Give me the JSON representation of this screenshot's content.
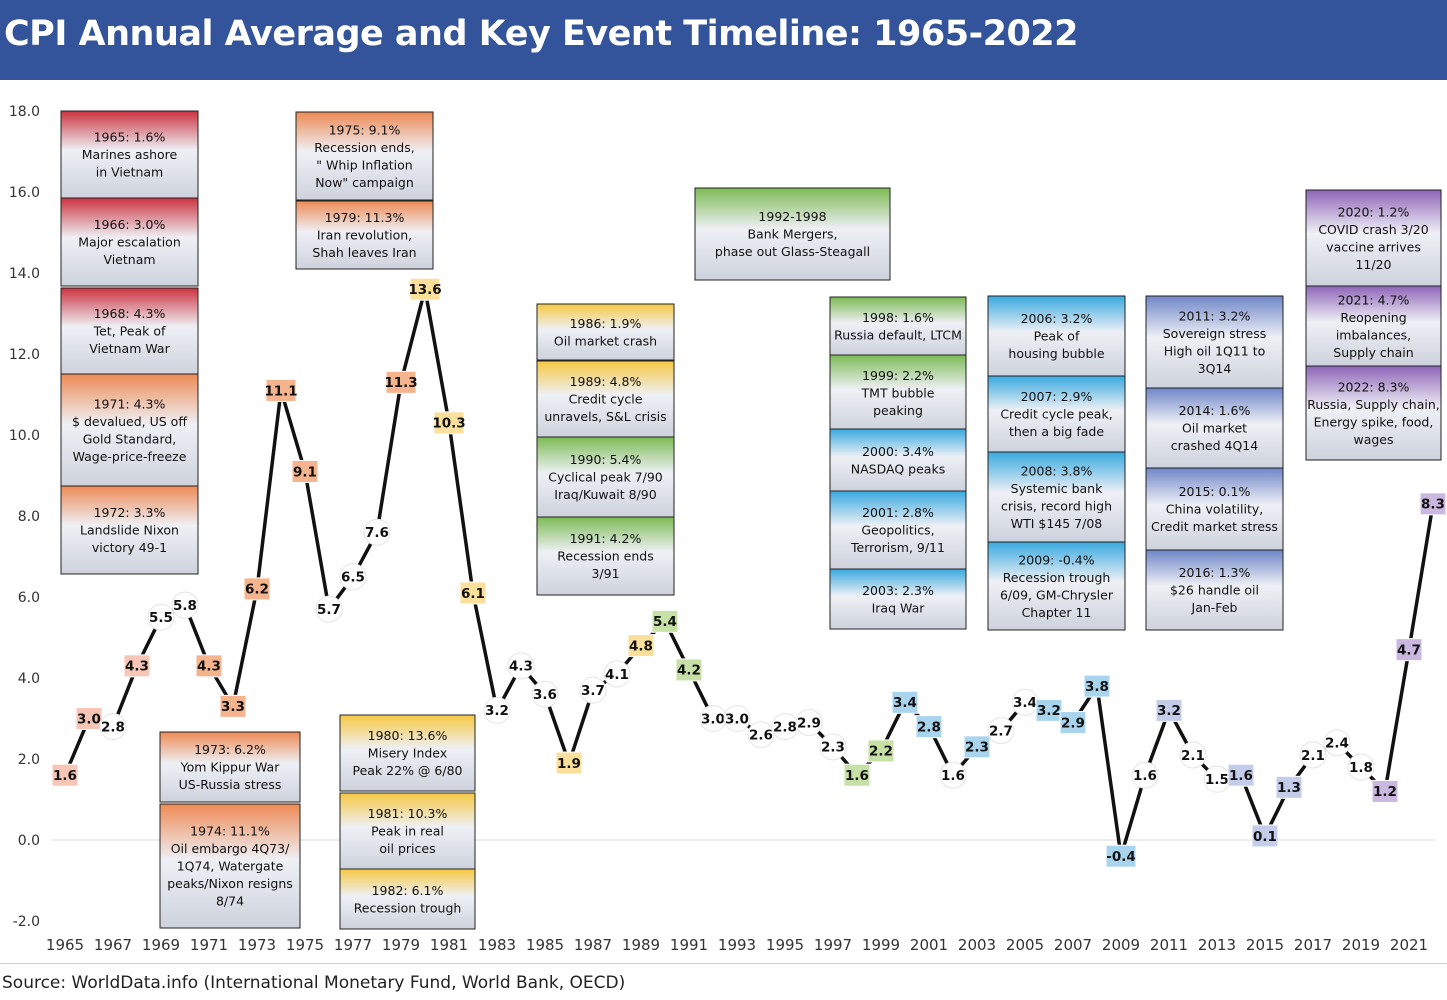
{
  "title": "CPI Annual Average and Key Event Timeline: 1965-2022",
  "source": "Source: WorldData.info (International Monetary Fund, World Bank, OECD)",
  "chart_data": {
    "type": "line",
    "xlabel": "",
    "ylabel": "",
    "ylim": [
      -2,
      18
    ],
    "y_ticks": [
      -2,
      0,
      2,
      4,
      6,
      8,
      10,
      12,
      14,
      16,
      18
    ],
    "y_tick_labels": [
      "-2.0",
      "0.0",
      "2.0",
      "4.0",
      "6.0",
      "8.0",
      "10.0",
      "12.0",
      "14.0",
      "16.0",
      "18.0"
    ],
    "x_tick_labels": [
      "1965",
      "1967",
      "1969",
      "1971",
      "1973",
      "1975",
      "1977",
      "1979",
      "1981",
      "1983",
      "1985",
      "1987",
      "1989",
      "1991",
      "1993",
      "1995",
      "1997",
      "1999",
      "2001",
      "2003",
      "2005",
      "2007",
      "2009",
      "2011",
      "2013",
      "2015",
      "2017",
      "2019",
      "2021"
    ],
    "grid": false,
    "series": [
      {
        "x": [
          1965,
          1966,
          1967,
          1968,
          1969,
          1970,
          1971,
          1972,
          1973,
          1974,
          1975,
          1976,
          1977,
          1978,
          1979,
          1980,
          1981,
          1982,
          1983,
          1984,
          1985,
          1986,
          1987,
          1988,
          1989,
          1990,
          1991,
          1992,
          1993,
          1994,
          1995,
          1996,
          1997,
          1998,
          1999,
          2000,
          2001,
          2002,
          2003,
          2004,
          2005,
          2006,
          2007,
          2008,
          2009,
          2010,
          2011,
          2012,
          2013,
          2014,
          2015,
          2016,
          2017,
          2018,
          2019,
          2020,
          2021,
          2022
        ],
        "values": [
          1.6,
          3.0,
          2.8,
          4.3,
          5.5,
          5.8,
          4.3,
          3.3,
          6.2,
          11.1,
          9.1,
          5.7,
          6.5,
          7.6,
          11.3,
          13.6,
          10.3,
          6.1,
          3.2,
          4.3,
          3.6,
          1.9,
          3.7,
          4.1,
          4.8,
          5.4,
          4.2,
          3.0,
          3.0,
          2.6,
          2.8,
          2.9,
          2.3,
          1.6,
          2.2,
          3.4,
          2.8,
          1.6,
          2.3,
          2.7,
          3.4,
          3.2,
          2.9,
          3.8,
          -0.4,
          1.6,
          3.2,
          2.1,
          1.5,
          1.6,
          0.1,
          1.3,
          2.1,
          2.4,
          1.8,
          1.2,
          4.7,
          8.3
        ],
        "labels": [
          "1.6",
          "3.0",
          "2.8",
          "4.3",
          "5.5",
          "5.8",
          "4.3",
          "3.3",
          "6.2",
          "11.1",
          "9.1",
          "5.7",
          "6.5",
          "7.6",
          "11.3",
          "13.6",
          "10.3",
          "6.1",
          "3.2",
          "4.3",
          "3.6",
          "1.9",
          "3.7",
          "4.1",
          "4.8",
          "5.4",
          "4.2",
          "3.0",
          "3.0",
          "2.6",
          "2.8",
          "2.9",
          "2.3",
          "1.6",
          "2.2",
          "3.4",
          "2.8",
          "1.6",
          "2.3",
          "2.7",
          "3.4",
          "3.2",
          "2.9",
          "3.8",
          "-0.4",
          "1.6",
          "3.2",
          "2.1",
          "1.5",
          "1.6",
          "0.1",
          "1.3",
          "2.1",
          "2.4",
          "1.8",
          "1.2",
          "4.7",
          "8.3"
        ],
        "label_colors": [
          "#f7c6b6",
          "#f7c6b6",
          "#ffffff",
          "#f7c6b6",
          "#ffffff",
          "#ffffff",
          "#f5b38e",
          "#f5b38e",
          "#f5b38e",
          "#f5b38e",
          "#f5b38e",
          "#ffffff",
          "#ffffff",
          "#ffffff",
          "#f5b38e",
          "#fbe09c",
          "#fbe09c",
          "#fbe09c",
          "#ffffff",
          "#ffffff",
          "#ffffff",
          "#fbe09c",
          "#ffffff",
          "#ffffff",
          "#fbe09c",
          "#c6e0a6",
          "#c6e0a6",
          "#ffffff",
          "#ffffff",
          "#ffffff",
          "#ffffff",
          "#ffffff",
          "#ffffff",
          "#c6e0a6",
          "#c6e0a6",
          "#a9d4ee",
          "#a9d4ee",
          "#ffffff",
          "#a9d4ee",
          "#ffffff",
          "#ffffff",
          "#a9d4ee",
          "#a9d4ee",
          "#a9d4ee",
          "#a9d4ee",
          "#ffffff",
          "#c3cdea",
          "#ffffff",
          "#ffffff",
          "#c3cdea",
          "#c3cdea",
          "#c3cdea",
          "#ffffff",
          "#ffffff",
          "#ffffff",
          "#cbb8e0",
          "#cbb8e0",
          "#cbb8e0"
        ]
      }
    ],
    "annotations": [
      {
        "lines": [
          "1965: 1.6%",
          "Marines ashore",
          "in Vietnam"
        ],
        "top": "#cc3340"
      },
      {
        "lines": [
          "1966: 3.0%",
          "Major escalation",
          "Vietnam"
        ],
        "top": "#cc3340"
      },
      {
        "lines": [
          "1968: 4.3%",
          "Tet, Peak of",
          "Vietnam War"
        ],
        "top": "#cc3340"
      },
      {
        "lines": [
          "1971: 4.3%",
          "$ devalued, US off",
          "Gold Standard,",
          "Wage-price-freeze"
        ],
        "top": "#ee8a55"
      },
      {
        "lines": [
          "1972: 3.3%",
          "Landslide Nixon",
          "victory 49-1"
        ],
        "top": "#ee8a55"
      },
      {
        "lines": [
          "1973: 6.2%",
          "Yom Kippur War",
          "US-Russia stress"
        ],
        "top": "#ee8a55"
      },
      {
        "lines": [
          "1974: 11.1%",
          "Oil embargo 4Q73/",
          "1Q74, Watergate",
          "peaks/Nixon resigns",
          "8/74"
        ],
        "top": "#ee8a55"
      },
      {
        "lines": [
          "1975: 9.1%",
          "Recession ends,",
          "\" Whip Inflation",
          "Now\" campaign"
        ],
        "top": "#ee8a55"
      },
      {
        "lines": [
          "1979: 11.3%",
          "Iran revolution,",
          "Shah leaves Iran"
        ],
        "top": "#ee8a55"
      },
      {
        "lines": [
          "1980: 13.6%",
          "Misery Index",
          "Peak 22% @ 6/80"
        ],
        "top": "#f6c842"
      },
      {
        "lines": [
          "1981: 10.3%",
          "Peak in real",
          "oil prices"
        ],
        "top": "#f6c842"
      },
      {
        "lines": [
          "1982: 6.1%",
          "Recession trough"
        ],
        "top": "#f6c842"
      },
      {
        "lines": [
          "1986: 1.9%",
          "Oil market crash"
        ],
        "top": "#f6c842"
      },
      {
        "lines": [
          "1989: 4.8%",
          "Credit cycle",
          "unravels, S&L crisis"
        ],
        "top": "#f6c842"
      },
      {
        "lines": [
          "1990: 5.4%",
          "Cyclical peak 7/90",
          "Iraq/Kuwait 8/90"
        ],
        "top": "#7dbb55"
      },
      {
        "lines": [
          "1991: 4.2%",
          "Recession ends",
          "3/91"
        ],
        "top": "#7dbb55"
      },
      {
        "lines": [
          "1992-1998",
          "Bank Mergers,",
          "phase out Glass-Steagall"
        ],
        "top": "#7dbb55"
      },
      {
        "lines": [
          "1998: 1.6%",
          "Russia default, LTCM"
        ],
        "top": "#7dbb55"
      },
      {
        "lines": [
          "1999: 2.2%",
          "TMT bubble",
          "peaking"
        ],
        "top": "#7dbb55"
      },
      {
        "lines": [
          "2000: 3.4%",
          "NASDAQ peaks"
        ],
        "top": "#38a9e0"
      },
      {
        "lines": [
          "2001: 2.8%",
          "Geopolitics,",
          "Terrorism, 9/11"
        ],
        "top": "#38a9e0"
      },
      {
        "lines": [
          "2003: 2.3%",
          "Iraq War"
        ],
        "top": "#38a9e0"
      },
      {
        "lines": [
          "2006: 3.2%",
          "Peak of",
          "housing bubble"
        ],
        "top": "#38a9e0"
      },
      {
        "lines": [
          "2007: 2.9%",
          "Credit cycle peak,",
          "then a big fade"
        ],
        "top": "#38a9e0"
      },
      {
        "lines": [
          "2008: 3.8%",
          "Systemic bank",
          "crisis, record high",
          "WTI $145 7/08"
        ],
        "top": "#38a9e0"
      },
      {
        "lines": [
          "2009: -0.4%",
          "Recession trough",
          "6/09, GM-Chrysler",
          "Chapter 11"
        ],
        "top": "#38a9e0"
      },
      {
        "lines": [
          "2011: 3.2%",
          "Sovereign stress",
          "High oil 1Q11 to",
          "3Q14"
        ],
        "top": "#6f86c8"
      },
      {
        "lines": [
          "2014: 1.6%",
          "Oil market",
          "crashed 4Q14"
        ],
        "top": "#6f86c8"
      },
      {
        "lines": [
          "2015: 0.1%",
          "China volatility,",
          "Credit market stress"
        ],
        "top": "#6f86c8"
      },
      {
        "lines": [
          "2016: 1.3%",
          "$26 handle oil",
          "Jan-Feb"
        ],
        "top": "#6f86c8"
      },
      {
        "lines": [
          "2020: 1.2%",
          "COVID crash 3/20",
          "vaccine arrives",
          "11/20"
        ],
        "top": "#8f65b8"
      },
      {
        "lines": [
          "2021: 4.7%",
          "Reopening",
          "imbalances,",
          "Supply chain"
        ],
        "top": "#8f65b8"
      },
      {
        "lines": [
          "2022: 8.3%",
          "Russia, Supply chain,",
          "Energy spike, food,",
          "wages"
        ],
        "top": "#8f65b8"
      }
    ]
  }
}
